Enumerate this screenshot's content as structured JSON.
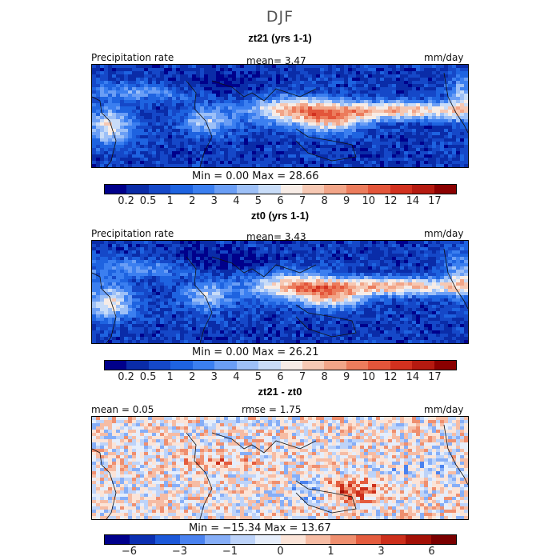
{
  "season": "DJF",
  "palettes": {
    "precip": [
      "#00008b",
      "#0a2ca8",
      "#1548c8",
      "#1e63e0",
      "#3b7ff0",
      "#6a9ef5",
      "#9dc0f7",
      "#c8dcf8",
      "#f7ece6",
      "#f6c8b3",
      "#f2a588",
      "#ec7c5c",
      "#e3553a",
      "#d2311f",
      "#b51a10",
      "#8b0000"
    ],
    "diff": [
      "#00008b",
      "#0b2fb1",
      "#1c58d8",
      "#4a82ef",
      "#86aef7",
      "#bdd3f9",
      "#e6eefb",
      "#fbe4d8",
      "#f6bca4",
      "#ef8f6f",
      "#e45c3e",
      "#cc2f1b",
      "#a31006",
      "#7a0000"
    ]
  },
  "panels": [
    {
      "title": "zt21 (yrs 1-1)",
      "left_label": "Precipitation rate",
      "center_label": "mean=    3.47",
      "units": "mm/day",
      "minmax": "Min =     0.00  Max =   28.66",
      "tick_labels": [
        "0.2",
        "0.5",
        "1",
        "2",
        "3",
        "4",
        "5",
        "6",
        "7",
        "8",
        "9",
        "10",
        "12",
        "14",
        "17"
      ],
      "palette": "precip"
    },
    {
      "title": "zt0 (yrs 1-1)",
      "left_label": "Precipitation rate",
      "center_label": "mean=    3.43",
      "units": "mm/day",
      "minmax": "Min =     0.00  Max =   26.21",
      "tick_labels": [
        "0.2",
        "0.5",
        "1",
        "2",
        "3",
        "4",
        "5",
        "6",
        "7",
        "8",
        "9",
        "10",
        "12",
        "14",
        "17"
      ],
      "palette": "precip"
    },
    {
      "title": "zt21 - zt0",
      "left_label": "mean =   0.05",
      "center_label": "rmse =    1.75",
      "units": "mm/day",
      "minmax": "Min = −15.34  Max =   13.67",
      "tick_labels": [
        "−6",
        "−3",
        "−1",
        "0",
        "1",
        "3",
        "6"
      ],
      "palette": "diff"
    }
  ],
  "chart_data": [
    {
      "type": "heatmap",
      "title": "zt21 (yrs 1-1)",
      "subtitle": "DJF",
      "variable": "Precipitation rate",
      "units": "mm/day",
      "mean": 3.47,
      "min": 0.0,
      "max": 28.66,
      "colorbar_levels": [
        0.2,
        0.5,
        1,
        2,
        3,
        4,
        5,
        6,
        7,
        8,
        9,
        10,
        12,
        14,
        17
      ]
    },
    {
      "type": "heatmap",
      "title": "zt0 (yrs 1-1)",
      "subtitle": "DJF",
      "variable": "Precipitation rate",
      "units": "mm/day",
      "mean": 3.43,
      "min": 0.0,
      "max": 26.21,
      "colorbar_levels": [
        0.2,
        0.5,
        1,
        2,
        3,
        4,
        5,
        6,
        7,
        8,
        9,
        10,
        12,
        14,
        17
      ]
    },
    {
      "type": "heatmap",
      "title": "zt21 - zt0",
      "subtitle": "DJF",
      "units": "mm/day",
      "mean": 0.05,
      "rmse": 1.75,
      "min": -15.34,
      "max": 13.67,
      "colorbar_levels": [
        -6,
        -3,
        -1,
        0,
        1,
        3,
        6
      ]
    }
  ]
}
